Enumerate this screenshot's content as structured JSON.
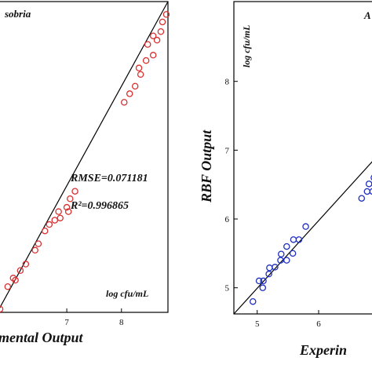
{
  "chart_data": [
    {
      "type": "scatter",
      "title": "",
      "legend_label": "sobria",
      "xlabel": "mental Output",
      "ylabel": "",
      "unit_label": "log cfu/mL",
      "stats": [
        "RMSE=0.071181",
        "R²=0.996865"
      ],
      "xlim": [
        5.75,
        8.85
      ],
      "ylim": [
        5.74,
        8.64
      ],
      "x_ticks": [
        7,
        8
      ],
      "y_ticks": [],
      "marker_color": "#d93030",
      "fit_line": [
        [
          5.75,
          5.76
        ],
        [
          8.85,
          8.64
        ]
      ],
      "points": [
        {
          "x": 5.78,
          "y": 5.77
        },
        {
          "x": 5.92,
          "y": 5.98
        },
        {
          "x": 6.02,
          "y": 6.06
        },
        {
          "x": 6.06,
          "y": 6.04
        },
        {
          "x": 6.15,
          "y": 6.13
        },
        {
          "x": 6.25,
          "y": 6.19
        },
        {
          "x": 6.42,
          "y": 6.32
        },
        {
          "x": 6.48,
          "y": 6.38
        },
        {
          "x": 6.6,
          "y": 6.5
        },
        {
          "x": 6.68,
          "y": 6.56
        },
        {
          "x": 6.78,
          "y": 6.6
        },
        {
          "x": 6.85,
          "y": 6.68
        },
        {
          "x": 6.88,
          "y": 6.62
        },
        {
          "x": 7.0,
          "y": 6.72
        },
        {
          "x": 7.03,
          "y": 6.68
        },
        {
          "x": 7.06,
          "y": 6.8
        },
        {
          "x": 7.15,
          "y": 6.87
        },
        {
          "x": 8.05,
          "y": 7.7
        },
        {
          "x": 8.15,
          "y": 7.78
        },
        {
          "x": 8.25,
          "y": 7.85
        },
        {
          "x": 8.35,
          "y": 7.96
        },
        {
          "x": 8.32,
          "y": 8.02
        },
        {
          "x": 8.45,
          "y": 8.09
        },
        {
          "x": 8.58,
          "y": 8.14
        },
        {
          "x": 8.48,
          "y": 8.24
        },
        {
          "x": 8.65,
          "y": 8.28
        },
        {
          "x": 8.72,
          "y": 8.36
        },
        {
          "x": 8.58,
          "y": 8.32
        },
        {
          "x": 8.75,
          "y": 8.45
        },
        {
          "x": 8.82,
          "y": 8.52
        }
      ]
    },
    {
      "type": "scatter",
      "title": "",
      "legend_label": "A",
      "xlabel": "Experin",
      "ylabel": "RBF Output",
      "unit_label": "log cfu/mL",
      "stats": [],
      "xlim": [
        4.62,
        6.92
      ],
      "ylim": [
        4.62,
        9.16
      ],
      "x_ticks": [
        5,
        6
      ],
      "y_ticks": [
        5,
        6,
        7,
        8
      ],
      "marker_color": "#1f2fbf",
      "fit_line": [
        [
          4.62,
          4.62
        ],
        [
          6.92,
          6.88
        ]
      ],
      "points": [
        {
          "x": 4.93,
          "y": 4.8
        },
        {
          "x": 5.03,
          "y": 5.1
        },
        {
          "x": 5.09,
          "y": 5.0
        },
        {
          "x": 5.1,
          "y": 5.1
        },
        {
          "x": 5.19,
          "y": 5.2
        },
        {
          "x": 5.2,
          "y": 5.29
        },
        {
          "x": 5.29,
          "y": 5.3
        },
        {
          "x": 5.38,
          "y": 5.4
        },
        {
          "x": 5.39,
          "y": 5.49
        },
        {
          "x": 5.48,
          "y": 5.4
        },
        {
          "x": 5.48,
          "y": 5.6
        },
        {
          "x": 5.58,
          "y": 5.5
        },
        {
          "x": 5.59,
          "y": 5.7
        },
        {
          "x": 5.68,
          "y": 5.7
        },
        {
          "x": 5.79,
          "y": 5.89
        },
        {
          "x": 6.7,
          "y": 6.3
        },
        {
          "x": 6.79,
          "y": 6.4
        },
        {
          "x": 6.82,
          "y": 6.51
        },
        {
          "x": 6.88,
          "y": 6.4
        },
        {
          "x": 6.9,
          "y": 6.6
        }
      ]
    }
  ]
}
